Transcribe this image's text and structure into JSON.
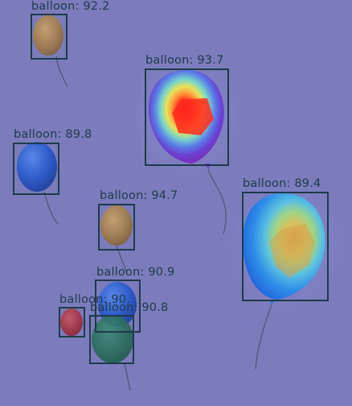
{
  "image": {
    "background_color": "#7c7cbd",
    "box_color": "#1f3a4a"
  },
  "detections": [
    {
      "class": "balloon",
      "score": "92.2",
      "label": "balloon: 92.2",
      "color": "brown"
    },
    {
      "class": "balloon",
      "score": "93.7",
      "label": "balloon: 93.7",
      "color": "purple"
    },
    {
      "class": "balloon",
      "score": "89.8",
      "label": "balloon: 89.8",
      "color": "blue"
    },
    {
      "class": "balloon",
      "score": "94.7",
      "label": "balloon: 94.7",
      "color": "brown"
    },
    {
      "class": "balloon",
      "score": "89.4",
      "label": "balloon: 89.4",
      "color": "blue"
    },
    {
      "class": "balloon",
      "score": "90.9",
      "label": "balloon: 90.9",
      "color": "blue"
    },
    {
      "class": "balloon",
      "score": "90.",
      "label": "balloon: 90.",
      "color": "red"
    },
    {
      "class": "balloon",
      "score": "90.8",
      "label": "balloon: 90.8",
      "color": "green"
    }
  ],
  "heatmap_overlay": [
    "balloon: 93.7",
    "balloon: 89.4"
  ]
}
